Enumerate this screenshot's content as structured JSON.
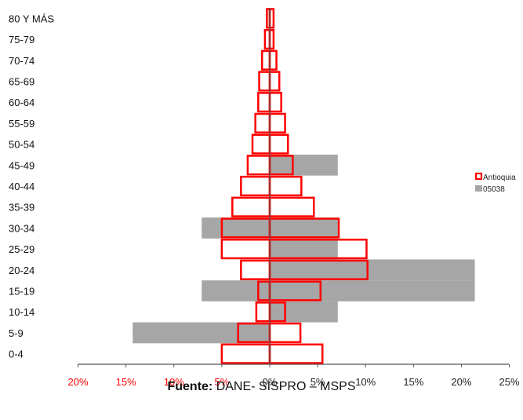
{
  "chart_data": {
    "type": "bar",
    "subtype": "population-pyramid",
    "categories": [
      "0-4",
      "5-9",
      "10-14",
      "15-19",
      "20-24",
      "25-29",
      "30-34",
      "35-39",
      "40-44",
      "45-49",
      "50-54",
      "55-59",
      "60-64",
      "65-69",
      "70-74",
      "75-79",
      "80 Y MÁS"
    ],
    "series": [
      {
        "name": "Antioquia",
        "style": "outline",
        "color": "#ff0000",
        "left": [
          5.0,
          3.3,
          1.4,
          1.2,
          3.0,
          5.0,
          5.0,
          3.9,
          3.0,
          2.3,
          1.8,
          1.5,
          1.2,
          1.1,
          0.8,
          0.5,
          0.3
        ],
        "right": [
          5.5,
          3.2,
          1.6,
          5.3,
          10.2,
          10.1,
          7.2,
          4.6,
          3.3,
          2.4,
          1.9,
          1.6,
          1.2,
          1.0,
          0.7,
          0.4,
          0.4
        ]
      },
      {
        "name": "05038",
        "style": "fill",
        "color": "#a6a6a6",
        "left": [
          0,
          14.3,
          0,
          7.1,
          0,
          0,
          7.1,
          0,
          0,
          0,
          0,
          0,
          0,
          0,
          0,
          0,
          0
        ],
        "right": [
          0,
          0,
          7.1,
          21.4,
          21.4,
          7.1,
          7.1,
          0,
          0,
          7.1,
          0,
          0,
          0,
          0,
          0,
          0,
          0
        ]
      }
    ],
    "xlim": [
      -20,
      25
    ],
    "xticks": [
      -20,
      -15,
      -10,
      -5,
      0,
      5,
      10,
      15,
      20,
      25
    ],
    "xtick_labels": [
      "20%",
      "15%",
      "10%",
      "5%",
      "0%",
      "5%",
      "10%",
      "15%",
      "20%",
      "25%"
    ],
    "negative_tick_color": "#ff0000",
    "positive_tick_color": "#222222",
    "grid": false,
    "legend_position": "right"
  },
  "source": {
    "label": "Fuente:",
    "text": " DANE- SISPRO – MSPS"
  }
}
